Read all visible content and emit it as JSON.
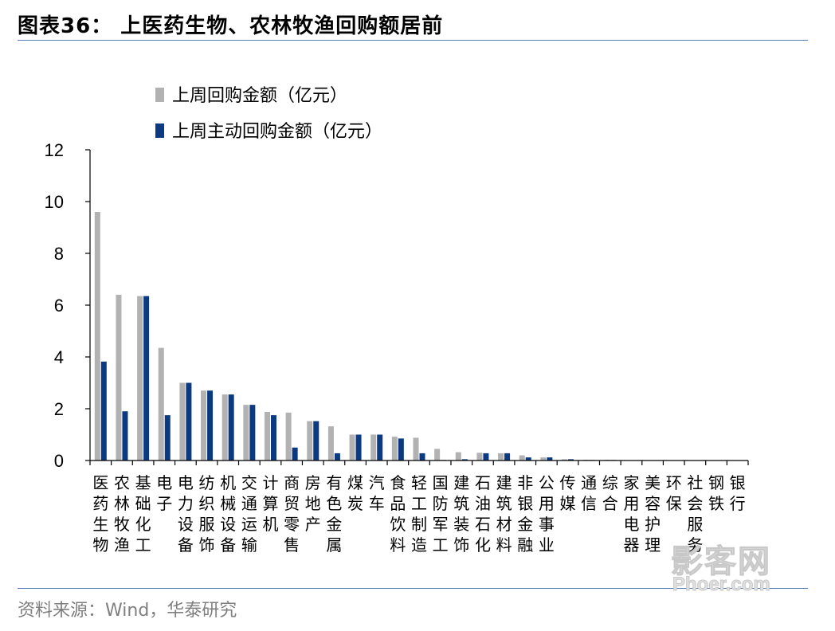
{
  "header": {
    "title": "图表36：  上医药生物、农林牧渔回购额居前"
  },
  "footer": {
    "source": "资料来源：Wind，华泰研究"
  },
  "watermark": {
    "cn": "影客网",
    "en": "Phoer.com"
  },
  "colors": {
    "series_total": "#b2b2b2",
    "series_active": "#0b3a82",
    "rule": "#5a7fb5"
  },
  "chart_data": {
    "type": "bar",
    "legend_position": "top-left",
    "grid": false,
    "ylim": [
      0,
      12
    ],
    "yticks": [
      0,
      2,
      4,
      6,
      8,
      10,
      12
    ],
    "categories": [
      "医药生物",
      "农林牧渔",
      "基础化工",
      "电子",
      "电力设备",
      "纺织服饰",
      "机械设备",
      "交通运输",
      "计算机",
      "商贸零售",
      "房地产",
      "有色金属",
      "煤炭",
      "汽车",
      "食品饮料",
      "轻工制造",
      "国防军工",
      "建筑装饰",
      "石油石化",
      "建筑材料",
      "非银金融",
      "公用事业",
      "传媒",
      "通信",
      "综合",
      "家用电器",
      "美容护理",
      "环保",
      "社会服务",
      "钢铁",
      "银行"
    ],
    "series": [
      {
        "name": "上周回购金额（亿元）",
        "values": [
          9.6,
          6.4,
          6.35,
          4.35,
          3.0,
          2.7,
          2.55,
          2.15,
          1.88,
          1.85,
          1.52,
          1.32,
          1.0,
          1.0,
          0.92,
          0.88,
          0.45,
          0.32,
          0.3,
          0.28,
          0.2,
          0.12,
          0.05,
          0.03,
          0.03,
          0.01,
          0.01,
          0.01,
          0.01,
          0.01,
          0.01
        ]
      },
      {
        "name": "上周主动回购金额（亿元）",
        "values": [
          3.82,
          1.9,
          6.35,
          1.75,
          3.0,
          2.7,
          2.55,
          2.15,
          1.75,
          0.5,
          1.52,
          0.28,
          1.0,
          1.0,
          0.85,
          0.28,
          0.02,
          0.05,
          0.28,
          0.28,
          0.12,
          0.12,
          0.05,
          0.02,
          0.02,
          0.01,
          0.01,
          0.01,
          0.01,
          0.01,
          0.01
        ]
      }
    ]
  }
}
